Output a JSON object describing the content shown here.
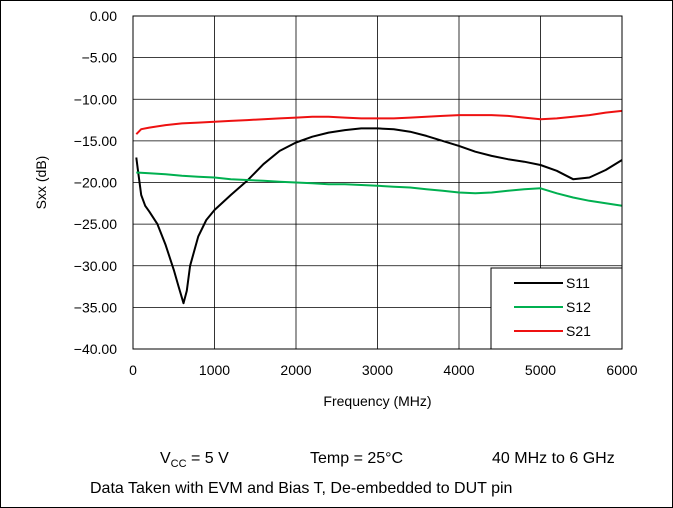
{
  "chart_data": {
    "type": "line",
    "xlabel": "Frequency (MHz)",
    "ylabel": "Sxx (dB)",
    "xlim": [
      0,
      6000
    ],
    "ylim": [
      -40,
      0
    ],
    "x_ticks": [
      "0",
      "1000",
      "2000",
      "3000",
      "4000",
      "5000",
      "6000"
    ],
    "x_tick_values": [
      0,
      1000,
      2000,
      3000,
      4000,
      5000,
      6000
    ],
    "y_ticks": [
      "0.00",
      "−5.00",
      "−10.00",
      "−15.00",
      "−20.00",
      "−25.00",
      "−30.00",
      "−35.00",
      "−40.00"
    ],
    "y_tick_values": [
      0,
      -5,
      -10,
      -15,
      -20,
      -25,
      -30,
      -35,
      -40
    ],
    "grid": true,
    "legend_position": "bottom-right",
    "series": [
      {
        "name": "S11",
        "color": "#000000",
        "x": [
          40,
          60,
          100,
          150,
          200,
          300,
          400,
          500,
          560,
          620,
          660,
          700,
          800,
          900,
          1000,
          1200,
          1400,
          1600,
          1800,
          2000,
          2200,
          2400,
          2600,
          2800,
          3000,
          3200,
          3400,
          3600,
          3800,
          4000,
          4200,
          4400,
          4600,
          4800,
          5000,
          5200,
          5400,
          5600,
          5800,
          6000
        ],
        "y": [
          -17,
          -18.5,
          -21.5,
          -22.8,
          -23.5,
          -25,
          -27.5,
          -30.5,
          -32.5,
          -34.5,
          -33,
          -30,
          -26.5,
          -24.5,
          -23.3,
          -21.5,
          -19.8,
          -17.8,
          -16.2,
          -15.2,
          -14.5,
          -14.0,
          -13.7,
          -13.5,
          -13.5,
          -13.6,
          -13.9,
          -14.4,
          -15.0,
          -15.6,
          -16.3,
          -16.8,
          -17.2,
          -17.5,
          -17.9,
          -18.6,
          -19.6,
          -19.4,
          -18.5,
          -17.3
        ]
      },
      {
        "name": "S12",
        "color": "#00b050",
        "x": [
          40,
          200,
          400,
          600,
          800,
          1000,
          1200,
          1400,
          1600,
          1800,
          2000,
          2200,
          2400,
          2600,
          2800,
          3000,
          3200,
          3400,
          3600,
          3800,
          4000,
          4200,
          4400,
          4600,
          4800,
          5000,
          5200,
          5400,
          5600,
          5800,
          6000
        ],
        "y": [
          -18.8,
          -18.9,
          -19.0,
          -19.2,
          -19.3,
          -19.4,
          -19.6,
          -19.7,
          -19.8,
          -19.9,
          -20.0,
          -20.1,
          -20.2,
          -20.2,
          -20.3,
          -20.4,
          -20.5,
          -20.6,
          -20.8,
          -21.0,
          -21.2,
          -21.3,
          -21.2,
          -21.0,
          -20.8,
          -20.7,
          -21.3,
          -21.8,
          -22.2,
          -22.5,
          -22.8
        ]
      },
      {
        "name": "S21",
        "color": "#ee1111",
        "x": [
          40,
          100,
          200,
          400,
          600,
          800,
          1000,
          1200,
          1400,
          1600,
          1800,
          2000,
          2200,
          2400,
          2600,
          2800,
          3000,
          3200,
          3400,
          3600,
          3800,
          4000,
          4200,
          4400,
          4600,
          4800,
          5000,
          5200,
          5400,
          5600,
          5800,
          6000
        ],
        "y": [
          -14.2,
          -13.6,
          -13.4,
          -13.1,
          -12.9,
          -12.8,
          -12.7,
          -12.6,
          -12.5,
          -12.4,
          -12.3,
          -12.2,
          -12.1,
          -12.1,
          -12.2,
          -12.3,
          -12.3,
          -12.3,
          -12.2,
          -12.1,
          -12.0,
          -11.9,
          -11.9,
          -11.9,
          -12.0,
          -12.2,
          -12.4,
          -12.3,
          -12.1,
          -11.9,
          -11.6,
          -11.4
        ]
      }
    ]
  },
  "caption": {
    "vcc_v": "V",
    "vcc_sub": "CC",
    "vcc_value": " = 5 V",
    "temp": "Temp = 25°C",
    "range": "40 MHz to 6 GHz",
    "line2": "Data Taken with EVM and Bias T, De-embedded to DUT pin"
  }
}
